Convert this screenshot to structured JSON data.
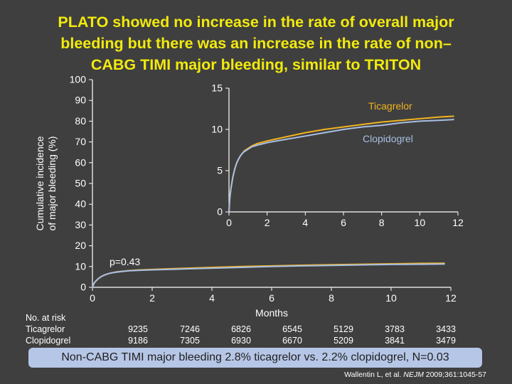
{
  "title_lines": [
    "PLATO showed no increase in the rate of overall major",
    "bleeding but there was an increase in the rate of non–",
    "CABG TIMI major bleeding, similar to TRITON"
  ],
  "colors": {
    "background": "#3f3f3f",
    "title": "#f2ea0d",
    "ticagrelor": "#f2b320",
    "clopidogrel": "#a8bfe3",
    "text": "#ffffff",
    "footer_bg": "#b6c6e6"
  },
  "risk_table": {
    "header": "No. at risk",
    "rows": [
      {
        "label": "Ticagrelor",
        "values": [
          "9235",
          "7246",
          "6826",
          "6545",
          "5129",
          "3783",
          "3433"
        ]
      },
      {
        "label": "Clopidogrel",
        "values": [
          "9186",
          "7305",
          "6930",
          "6670",
          "5209",
          "3841",
          "3479"
        ]
      }
    ]
  },
  "footer_note": "Non-CABG TIMI major bleeding 2.8% ticagrelor vs. 2.2% clopidogrel, N=0.03",
  "citation": {
    "authors": "Wallentin L, et al.",
    "journal": "NEJM",
    "rest": "2009;361:1045-57"
  },
  "chart_data": [
    {
      "type": "line",
      "title": "",
      "xlabel": "Months",
      "ylabel": "Cumulative incidence of major bleeding (%)",
      "ylabel_lines": [
        "Cumulative incidence",
        "of major bleeding (%)"
      ],
      "xlim": [
        0,
        12
      ],
      "ylim": [
        0,
        100
      ],
      "xticks": [
        0,
        2,
        4,
        6,
        8,
        10,
        12
      ],
      "yticks": [
        0,
        10,
        20,
        30,
        40,
        50,
        60,
        70,
        80,
        90,
        100
      ],
      "annotation": "p=0.43",
      "series": [
        {
          "name": "Ticagrelor",
          "x": [
            0,
            0.05,
            0.1,
            0.2,
            0.3,
            0.4,
            0.5,
            0.6,
            0.7,
            0.8,
            1.0,
            1.2,
            1.5,
            2,
            3,
            4,
            5,
            6,
            7,
            8,
            9,
            10,
            11,
            11.8
          ],
          "y": [
            0,
            1.8,
            2.8,
            4.2,
            5.2,
            5.9,
            6.4,
            6.8,
            7.1,
            7.4,
            7.7,
            8.0,
            8.3,
            8.6,
            9.1,
            9.6,
            10.0,
            10.3,
            10.6,
            10.9,
            11.1,
            11.3,
            11.5,
            11.6
          ]
        },
        {
          "name": "Clopidogrel",
          "x": [
            0,
            0.05,
            0.1,
            0.2,
            0.3,
            0.4,
            0.5,
            0.6,
            0.7,
            0.8,
            1.0,
            1.2,
            1.5,
            2,
            3,
            4,
            5,
            6,
            7,
            8,
            9,
            10,
            11,
            11.8
          ],
          "y": [
            0,
            1.8,
            2.8,
            4.2,
            5.2,
            5.9,
            6.4,
            6.8,
            7.1,
            7.3,
            7.6,
            7.9,
            8.1,
            8.4,
            8.8,
            9.2,
            9.6,
            10.0,
            10.3,
            10.5,
            10.8,
            11.0,
            11.1,
            11.2
          ]
        }
      ]
    },
    {
      "type": "line",
      "title": "",
      "xlabel": "",
      "ylabel": "",
      "xlim": [
        0,
        12
      ],
      "ylim": [
        0,
        15
      ],
      "xticks": [
        0,
        2,
        4,
        6,
        8,
        10,
        12
      ],
      "yticks": [
        0,
        5,
        10,
        15
      ],
      "series": [
        {
          "name": "Ticagrelor",
          "x": [
            0,
            0.05,
            0.1,
            0.2,
            0.3,
            0.4,
            0.5,
            0.6,
            0.7,
            0.8,
            1.0,
            1.2,
            1.5,
            2,
            3,
            4,
            5,
            6,
            7,
            8,
            9,
            10,
            11,
            11.8
          ],
          "y": [
            0,
            1.8,
            2.8,
            4.2,
            5.2,
            5.9,
            6.4,
            6.8,
            7.1,
            7.4,
            7.7,
            8.0,
            8.3,
            8.6,
            9.1,
            9.6,
            10.0,
            10.3,
            10.6,
            10.9,
            11.1,
            11.3,
            11.5,
            11.6
          ]
        },
        {
          "name": "Clopidogrel",
          "x": [
            0,
            0.05,
            0.1,
            0.2,
            0.3,
            0.4,
            0.5,
            0.6,
            0.7,
            0.8,
            1.0,
            1.2,
            1.5,
            2,
            3,
            4,
            5,
            6,
            7,
            8,
            9,
            10,
            11,
            11.8
          ],
          "y": [
            0,
            1.8,
            2.8,
            4.2,
            5.2,
            5.9,
            6.4,
            6.8,
            7.1,
            7.3,
            7.6,
            7.9,
            8.1,
            8.4,
            8.8,
            9.2,
            9.6,
            10.0,
            10.3,
            10.5,
            10.8,
            11.0,
            11.1,
            11.2
          ]
        }
      ]
    }
  ]
}
